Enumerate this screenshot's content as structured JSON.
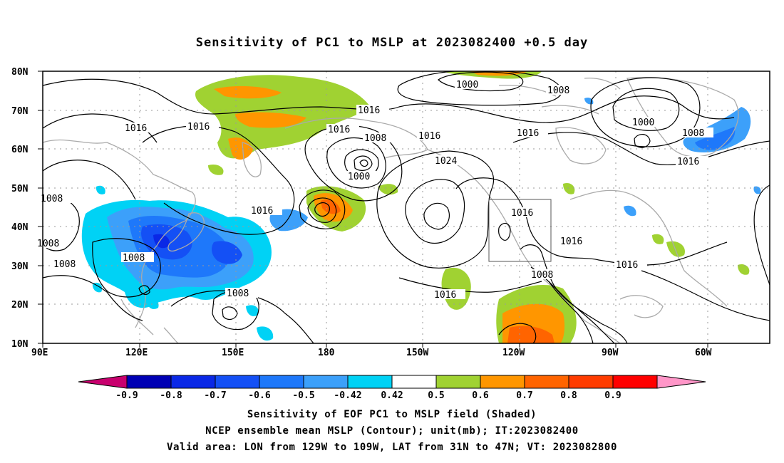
{
  "title": "Sensitivity of PC1 to MSLP at 2023082400 +0.5 day",
  "map": {
    "lat_labels": [
      "80N",
      "70N",
      "60N",
      "50N",
      "40N",
      "30N",
      "20N",
      "10N"
    ],
    "lon_labels": [
      "90E",
      "120E",
      "150E",
      "180",
      "150W",
      "120W",
      "90W",
      "60W"
    ],
    "contour_labels": [
      "1000",
      "1016",
      "1008",
      "1016",
      "1016",
      "1008",
      "1016",
      "1024",
      "1000",
      "1016",
      "1016",
      "1008",
      "1016",
      "1000",
      "1008",
      "1016",
      "1016",
      "1008",
      "1016",
      "1016",
      "1008",
      "1008",
      "1008",
      "1008",
      "1016"
    ]
  },
  "colorbar": {
    "labels": [
      "-0.9",
      "-0.8",
      "-0.7",
      "-0.6",
      "-0.5",
      "-0.42",
      "0.42",
      "0.5",
      "0.6",
      "0.7",
      "0.8",
      "0.9"
    ],
    "colors": [
      "#0000b4",
      "#0a28e6",
      "#1450f5",
      "#1e78fa",
      "#3ca0fa",
      "#00d2f5",
      "#ffffff",
      "#a0d232",
      "#ff9600",
      "#ff6400",
      "#ff3c00",
      "#ff0000"
    ],
    "under_color": "#c8006e",
    "over_color": "#ff96c8"
  },
  "captions": {
    "line1": "Sensitivity of EOF PC1 to MSLP field (Shaded)",
    "line2": "NCEP ensemble mean MSLP (Contour); unit(mb); IT:2023082400",
    "line3": "Valid area: LON from 129W to 109W, LAT from 31N to 47N; VT: 2023082800"
  }
}
